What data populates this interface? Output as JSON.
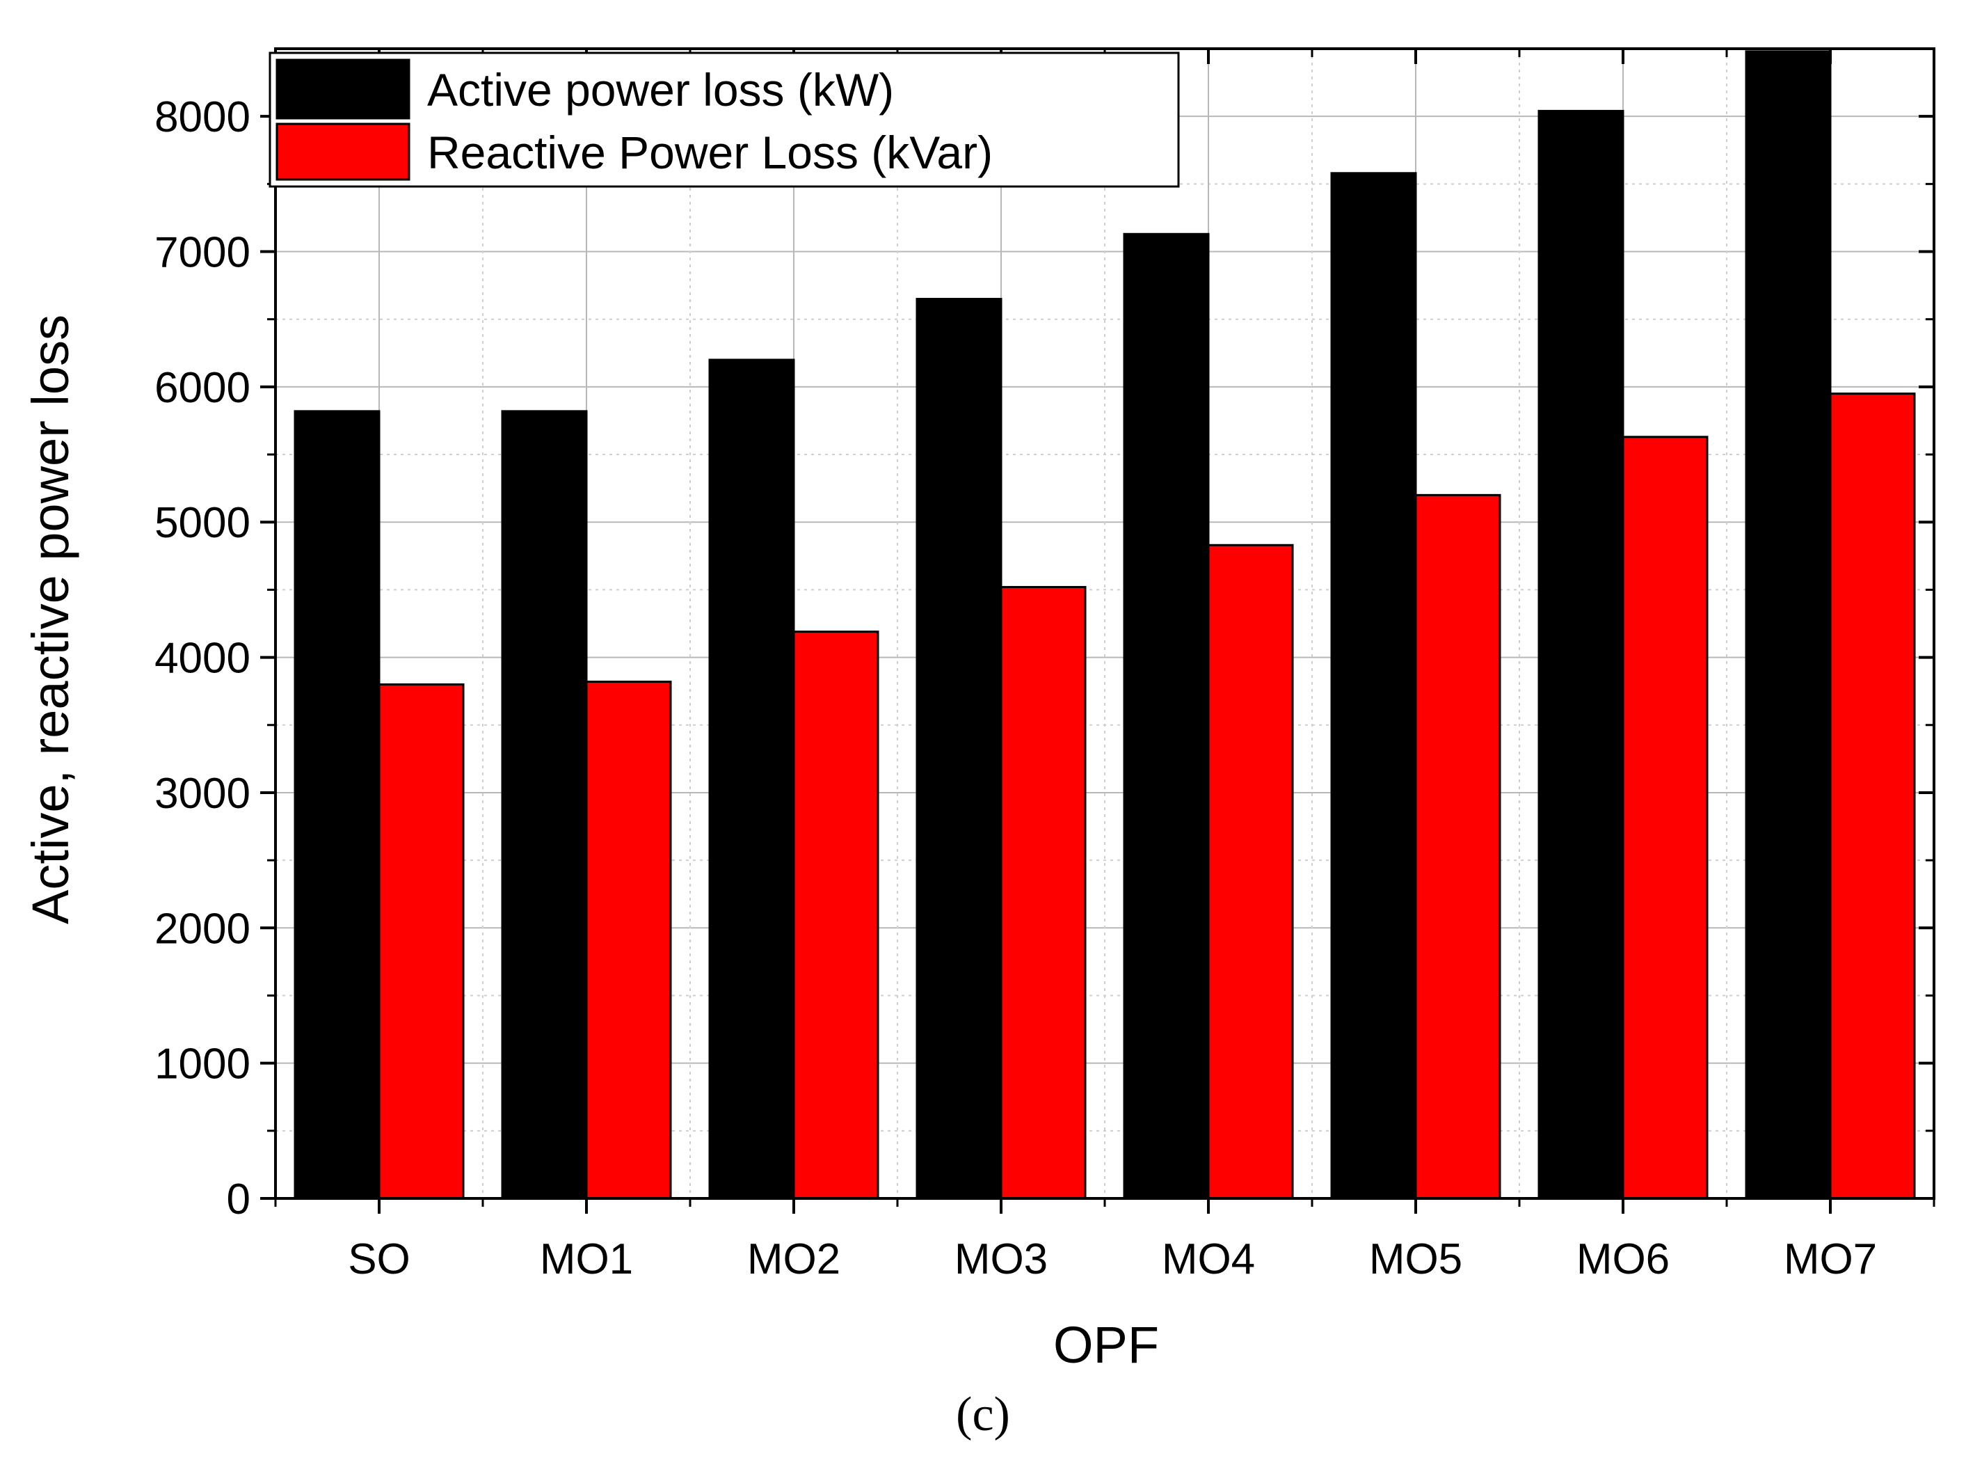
{
  "chart_data": {
    "type": "bar",
    "title": "",
    "xlabel": "OPF",
    "ylabel": "Active, reactive power loss",
    "categories": [
      "SO",
      "MO1",
      "MO2",
      "MO3",
      "MO4",
      "MO5",
      "MO6",
      "MO7"
    ],
    "series": [
      {
        "name": "Active power loss (kW)",
        "color": "#000000",
        "values": [
          5820,
          5820,
          6200,
          6650,
          7130,
          7580,
          8040,
          8480
        ]
      },
      {
        "name": "Reactive Power Loss (kVar)",
        "color": "#ff0000",
        "values": [
          3800,
          3820,
          4190,
          4520,
          4830,
          5200,
          5630,
          5950
        ]
      }
    ],
    "ylim": [
      0,
      8500
    ],
    "yticks": [
      0,
      1000,
      2000,
      3000,
      4000,
      5000,
      6000,
      7000,
      8000
    ],
    "ytick_labels": [
      "0",
      "1000",
      "2000",
      "3000",
      "4000",
      "5000",
      "6000",
      "7000",
      "8000"
    ],
    "grid": true,
    "legend_position": "top-left"
  },
  "caption": "(c)"
}
